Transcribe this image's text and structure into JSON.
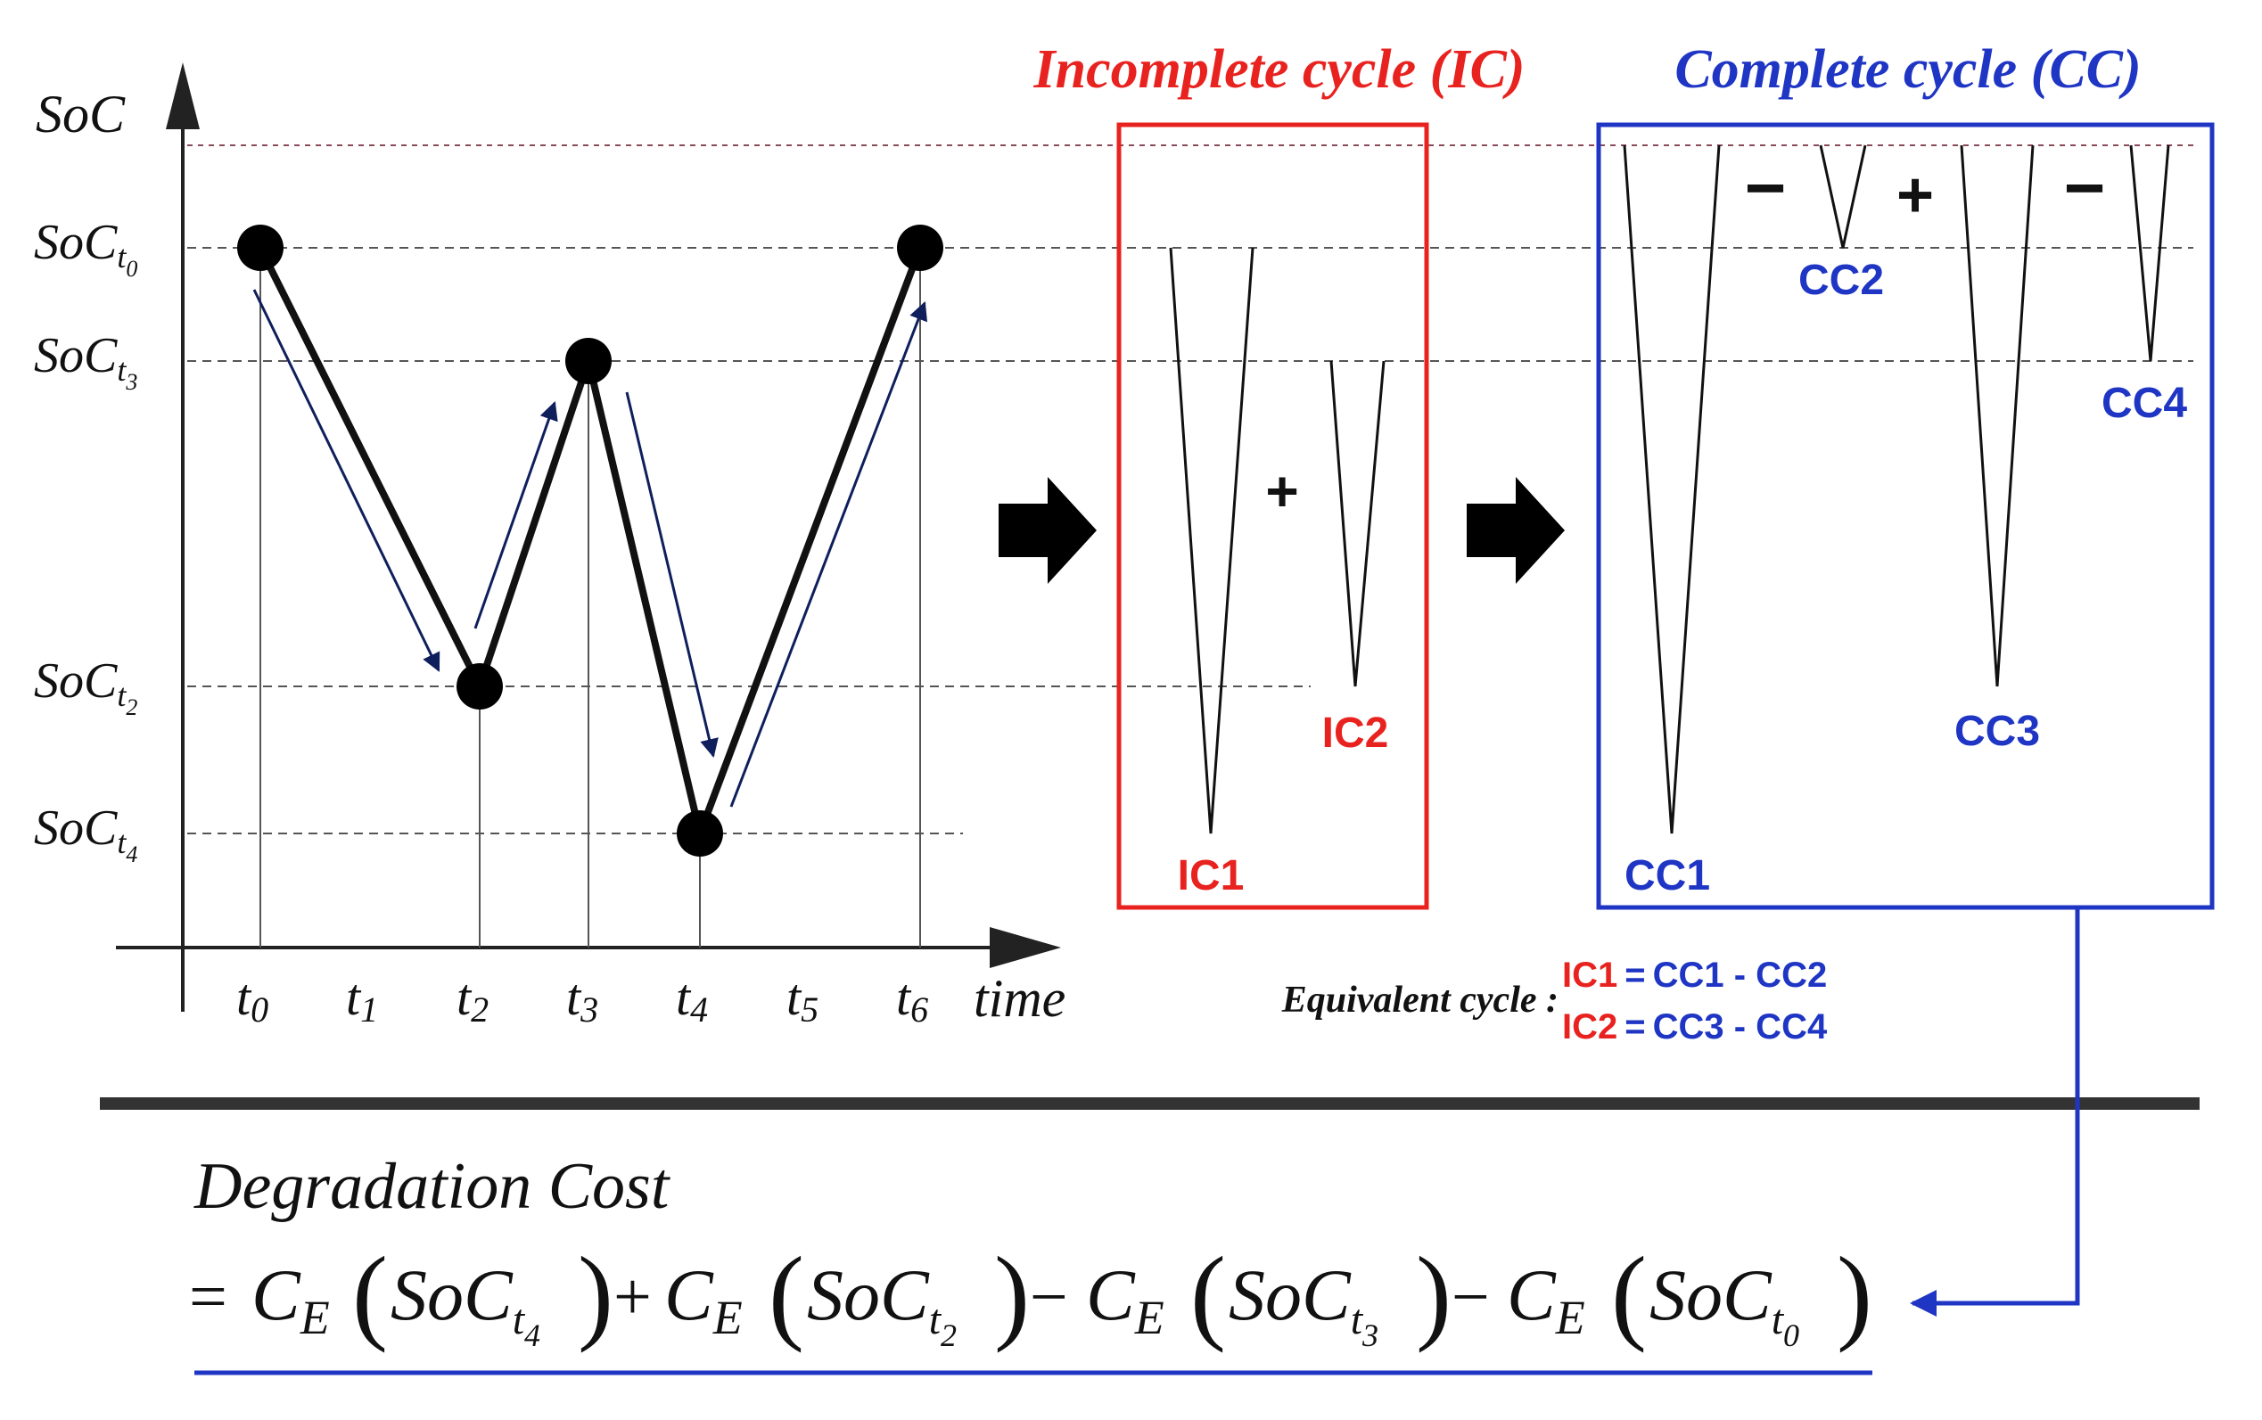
{
  "colors": {
    "ic": "#e8231f",
    "cc": "#1f35c4",
    "ink": "#111111",
    "arrow_navy": "#0f1f5c",
    "grid": "#555555",
    "rule": "#333333"
  },
  "axes": {
    "y_title": "SoC",
    "x_title": "time",
    "soc_base": "SoC",
    "soc_levels": [
      {
        "key": "t0",
        "sub": "t",
        "subsub": "0"
      },
      {
        "key": "t3",
        "sub": "t",
        "subsub": "3"
      },
      {
        "key": "t2",
        "sub": "t",
        "subsub": "2"
      },
      {
        "key": "t4",
        "sub": "t",
        "subsub": "4"
      }
    ],
    "time_ticks": [
      {
        "base": "t",
        "sub": "0"
      },
      {
        "base": "t",
        "sub": "1"
      },
      {
        "base": "t",
        "sub": "2"
      },
      {
        "base": "t",
        "sub": "3"
      },
      {
        "base": "t",
        "sub": "4"
      },
      {
        "base": "t",
        "sub": "5"
      },
      {
        "base": "t",
        "sub": "6"
      }
    ]
  },
  "soc_profile": {
    "times": [
      "t0",
      "t2",
      "t3",
      "t4",
      "t6"
    ],
    "levels": [
      "t0",
      "t2",
      "t3",
      "t4",
      "t0"
    ]
  },
  "panels": {
    "ic": {
      "title": "Incomplete cycle (IC)",
      "plus": "+",
      "cycles": [
        {
          "label": "IC1",
          "from": "t0",
          "to": "t4"
        },
        {
          "label": "IC2",
          "from": "t3",
          "to": "t2"
        }
      ]
    },
    "cc": {
      "title": "Complete cycle (CC)",
      "ops": [
        "−",
        "+",
        "−"
      ],
      "cycles": [
        {
          "label": "CC1",
          "from": "max",
          "to": "t4"
        },
        {
          "label": "CC2",
          "from": "max",
          "to": "t0"
        },
        {
          "label": "CC3",
          "from": "max",
          "to": "t2"
        },
        {
          "label": "CC4",
          "from": "max",
          "to": "t3"
        }
      ]
    }
  },
  "equivalent": {
    "prefix": "Equivalent cycle :",
    "rows": [
      {
        "lhs": "IC1",
        "eq": "=",
        "rhs": "CC1 - CC2"
      },
      {
        "lhs": "IC2",
        "eq": "=",
        "rhs": "CC3 - CC4"
      }
    ]
  },
  "formula": {
    "title": "Degradation Cost",
    "eq": "=",
    "fn": "C",
    "fn_sub": "E",
    "terms": [
      {
        "sign": "",
        "arg_base": "SoC",
        "arg_sub": "t",
        "arg_subsub": "4"
      },
      {
        "sign": "+",
        "arg_base": "SoC",
        "arg_sub": "t",
        "arg_subsub": "2"
      },
      {
        "sign": "−",
        "arg_base": "SoC",
        "arg_sub": "t",
        "arg_subsub": "3"
      },
      {
        "sign": "−",
        "arg_base": "SoC",
        "arg_sub": "t",
        "arg_subsub": "0"
      }
    ]
  }
}
